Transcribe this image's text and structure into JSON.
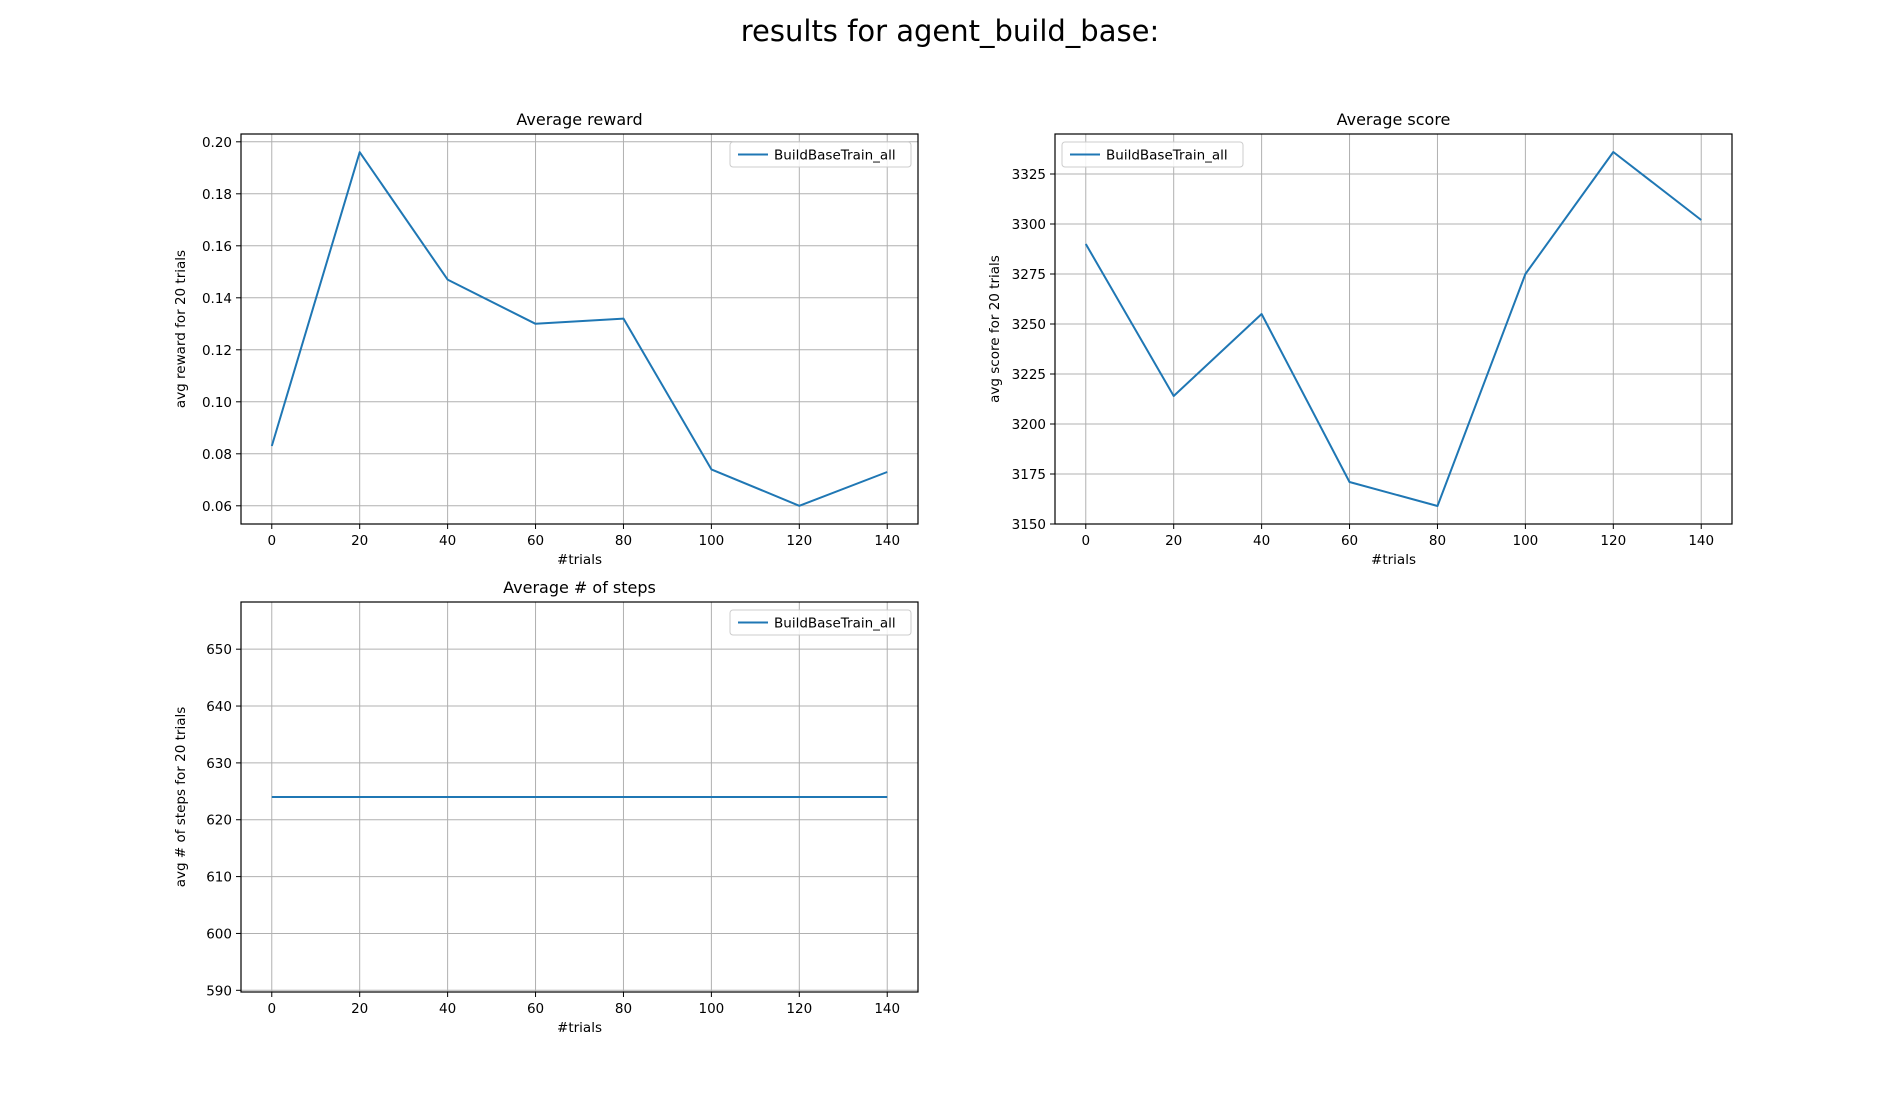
{
  "suptitle": "results for agent_build_base:",
  "colors": {
    "series": "#1f77b4",
    "grid": "#b0b0b0",
    "axes": "#000000",
    "legend_border": "#cccccc"
  },
  "chart_data": [
    {
      "type": "line",
      "title": "Average reward",
      "xlabel": "#trials",
      "ylabel": "avg reward for 20 trials",
      "x": [
        0,
        20,
        40,
        60,
        80,
        100,
        120,
        140
      ],
      "xticks": [
        0,
        20,
        40,
        60,
        80,
        100,
        120,
        140
      ],
      "xlim": [
        -7,
        147
      ],
      "yticks": [
        0.06,
        0.08,
        0.1,
        0.12,
        0.14,
        0.16,
        0.18,
        0.2
      ],
      "ytick_labels": [
        "0.06",
        "0.08",
        "0.10",
        "0.12",
        "0.14",
        "0.16",
        "0.18",
        "0.20"
      ],
      "ylim": [
        0.053,
        0.203
      ],
      "grid": true,
      "legend_loc": "upper right",
      "series": [
        {
          "name": "BuildBaseTrain_all",
          "values": [
            0.083,
            0.196,
            0.147,
            0.13,
            0.132,
            0.074,
            0.06,
            0.073
          ]
        }
      ]
    },
    {
      "type": "line",
      "title": "Average score",
      "xlabel": "#trials",
      "ylabel": "avg score for 20 trials",
      "x": [
        0,
        20,
        40,
        60,
        80,
        100,
        120,
        140
      ],
      "xticks": [
        0,
        20,
        40,
        60,
        80,
        100,
        120,
        140
      ],
      "xlim": [
        -7,
        147
      ],
      "yticks": [
        3150,
        3175,
        3200,
        3225,
        3250,
        3275,
        3300,
        3325
      ],
      "ytick_labels": [
        "3150",
        "3175",
        "3200",
        "3225",
        "3250",
        "3275",
        "3300",
        "3325"
      ],
      "ylim": [
        3150,
        3345
      ],
      "grid": true,
      "legend_loc": "upper left",
      "series": [
        {
          "name": "BuildBaseTrain_all",
          "values": [
            3290,
            3214,
            3255,
            3171,
            3159,
            3275,
            3336,
            3302
          ]
        }
      ]
    },
    {
      "type": "line",
      "title": "Average # of steps",
      "xlabel": "#trials",
      "ylabel": "avg # of steps for 20 trials",
      "x": [
        0,
        20,
        40,
        60,
        80,
        100,
        120,
        140
      ],
      "xticks": [
        0,
        20,
        40,
        60,
        80,
        100,
        120,
        140
      ],
      "xlim": [
        -7,
        147
      ],
      "yticks": [
        590,
        600,
        610,
        620,
        630,
        640,
        650
      ],
      "ytick_labels": [
        "590",
        "600",
        "610",
        "620",
        "630",
        "640",
        "650"
      ],
      "ylim": [
        589.7,
        658.3
      ],
      "grid": true,
      "legend_loc": "upper right",
      "series": [
        {
          "name": "BuildBaseTrain_all",
          "values": [
            624,
            624,
            624,
            624,
            624,
            624,
            624,
            624
          ]
        }
      ]
    }
  ]
}
